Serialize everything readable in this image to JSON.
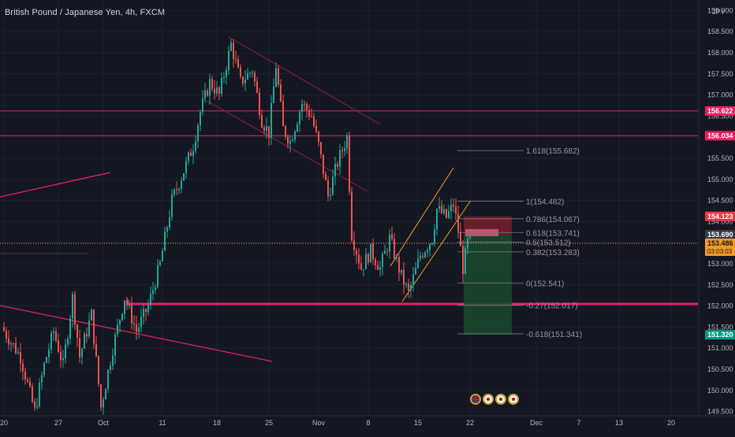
{
  "chart_data": {
    "type": "candlestick",
    "title": "British Pound / Japanese Yen, 4h, FXCM",
    "currency_label": "JPY",
    "colors": {
      "up": "#26a69a",
      "down": "#ef5350",
      "background": "#131722",
      "level_line": "#e91e63",
      "channel": "#f59a23",
      "fib": "#787b86",
      "current_price_line": "#f59a23",
      "stop_zone": "#7a1f2a",
      "target_zone": "#1b4a2b"
    },
    "y_axis": {
      "range": [
        149.4,
        159.1
      ],
      "ticks": [
        149.5,
        150.0,
        150.5,
        151.0,
        151.5,
        152.0,
        152.5,
        153.0,
        153.5,
        154.0,
        154.5,
        155.0,
        155.5,
        156.0,
        156.5,
        157.0,
        157.5,
        158.0,
        158.5,
        159.0
      ],
      "tick_labels": [
        "149.500",
        "150.000",
        "150.500",
        "151.000",
        "151.500",
        "152.000",
        "152.500",
        "153.000",
        "153.500",
        "154.000",
        "154.500",
        "155.000",
        "155.500",
        "156.000",
        "156.500",
        "157.000",
        "157.500",
        "158.000",
        "158.500",
        "159.000"
      ]
    },
    "x_axis": {
      "tick_labels": [
        "20",
        "27",
        "Oct",
        "11",
        "18",
        "25",
        "Nov",
        "8",
        "15",
        "22",
        "Dec",
        "7",
        "13",
        "20"
      ],
      "tick_bar_index": [
        0,
        23,
        42,
        67,
        90,
        112,
        133,
        154,
        175,
        197,
        225,
        243,
        260,
        282
      ]
    },
    "price_path": [
      [
        0,
        151.5
      ],
      [
        8,
        150.8
      ],
      [
        14,
        149.5
      ],
      [
        18,
        150.6
      ],
      [
        22,
        151.4
      ],
      [
        26,
        150.6
      ],
      [
        30,
        152.2
      ],
      [
        33,
        150.8
      ],
      [
        38,
        151.8
      ],
      [
        42,
        149.6
      ],
      [
        47,
        151.0
      ],
      [
        52,
        152.2
      ],
      [
        57,
        151.4
      ],
      [
        62,
        152.0
      ],
      [
        67,
        153.0
      ],
      [
        72,
        154.5
      ],
      [
        77,
        155.2
      ],
      [
        81,
        155.8
      ],
      [
        84,
        156.6
      ],
      [
        88,
        157.3
      ],
      [
        92,
        157.0
      ],
      [
        97,
        158.2
      ],
      [
        101,
        157.3
      ],
      [
        106,
        157.6
      ],
      [
        110,
        156.4
      ],
      [
        113,
        156.1
      ],
      [
        116,
        157.7
      ],
      [
        119,
        156.2
      ],
      [
        122,
        155.9
      ],
      [
        127,
        156.8
      ],
      [
        131,
        156.5
      ],
      [
        134,
        155.8
      ],
      [
        138,
        154.6
      ],
      [
        142,
        155.4
      ],
      [
        146,
        156.0
      ],
      [
        148,
        153.7
      ],
      [
        152,
        152.9
      ],
      [
        156,
        153.3
      ],
      [
        160,
        152.9
      ],
      [
        164,
        153.6
      ],
      [
        169,
        152.7
      ],
      [
        172,
        152.3
      ],
      [
        177,
        153.2
      ],
      [
        182,
        153.6
      ],
      [
        184,
        154.3
      ],
      [
        188,
        154.1
      ],
      [
        191,
        154.4
      ],
      [
        193,
        153.8
      ],
      [
        195,
        152.9
      ],
      [
        197,
        153.5
      ]
    ],
    "levels": {
      "resistance_1": 156.622,
      "resistance_2": 156.034,
      "support": 152.05
    },
    "fibonacci": [
      {
        "ratio": "1.618",
        "price": "155.682"
      },
      {
        "ratio": "1",
        "price": "154.482"
      },
      {
        "ratio": "0.786",
        "price": "154.067"
      },
      {
        "ratio": "0.618",
        "price": "153.741"
      },
      {
        "ratio": "0.5",
        "price": "153.512"
      },
      {
        "ratio": "0.382",
        "price": "153.283"
      },
      {
        "ratio": "0",
        "price": "152.541"
      },
      {
        "ratio": "-0.27",
        "price": "152.017"
      },
      {
        "ratio": "-0.618",
        "price": "151.341"
      }
    ],
    "price_labels": [
      {
        "price": 156.622,
        "text": "156.622",
        "bg": "#e91e63",
        "fg": "#ffffff"
      },
      {
        "price": 156.034,
        "text": "156.034",
        "bg": "#e91e63",
        "fg": "#ffffff"
      },
      {
        "price": 154.123,
        "text": "154.123",
        "bg": "#f23645",
        "fg": "#ffffff"
      },
      {
        "price": 153.69,
        "text": "153.690",
        "bg": "#363a45",
        "fg": "#ffffff"
      },
      {
        "price": 153.486,
        "text": "153.486",
        "bg": "#f59a23",
        "fg": "#131722",
        "sub": "03:03:03"
      },
      {
        "price": 151.32,
        "text": "151.320",
        "bg": "#089981",
        "fg": "#ffffff"
      }
    ],
    "position": {
      "entry": 153.69,
      "stop": 154.123,
      "target": 151.32,
      "current": 153.486
    }
  }
}
